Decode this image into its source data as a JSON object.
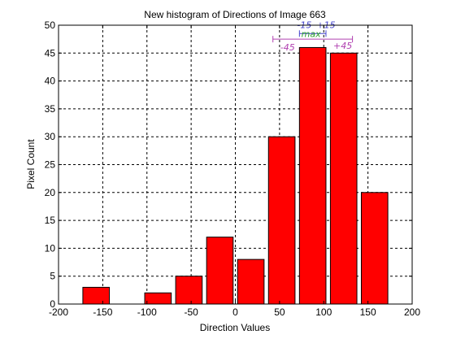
{
  "chart_data": {
    "type": "bar",
    "title": "New histogram of Directions of Image 663",
    "xlabel": "Direction Values",
    "ylabel": "Pixel Count",
    "xlim": [
      -200,
      200
    ],
    "ylim": [
      0,
      50
    ],
    "xticks": [
      -200,
      -150,
      -100,
      -50,
      0,
      50,
      100,
      150,
      200
    ],
    "yticks": [
      0,
      5,
      10,
      15,
      20,
      25,
      30,
      35,
      40,
      45,
      50
    ],
    "grid": true,
    "bar_width": 30,
    "bar_color": "#ff0000",
    "x": [
      -157.5,
      -122.5,
      -87.5,
      -52.5,
      -17.5,
      17.5,
      52.5,
      87.5,
      122.5,
      157.5
    ],
    "values": [
      3,
      0,
      2,
      5,
      12,
      8,
      30,
      46,
      45,
      20
    ],
    "annotations": {
      "max_label": "max",
      "max_color": "#2ca02c",
      "inner": {
        "x_from": 72.5,
        "x_to": 102.5,
        "y": 48.5,
        "left_label": "-15",
        "right_label": "+15",
        "color": "#4444cc"
      },
      "outer": {
        "x_from": 42.5,
        "x_to": 132.5,
        "y": 47.5,
        "left_label": "-45",
        "right_label": "+45",
        "color": "#b040b0"
      },
      "center_x": 87.5
    }
  }
}
